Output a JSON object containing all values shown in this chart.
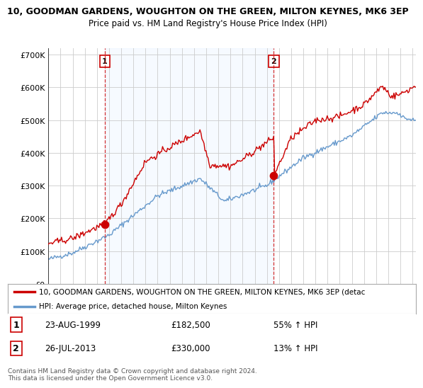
{
  "title": "10, GOODMAN GARDENS, WOUGHTON ON THE GREEN, MILTON KEYNES, MK6 3EP",
  "subtitle": "Price paid vs. HM Land Registry's House Price Index (HPI)",
  "xlim_start": 1995.0,
  "xlim_end": 2025.3,
  "ylim": [
    0,
    720000
  ],
  "yticks": [
    0,
    100000,
    200000,
    300000,
    400000,
    500000,
    600000,
    700000
  ],
  "ytick_labels": [
    "£0",
    "£100K",
    "£200K",
    "£300K",
    "£400K",
    "£500K",
    "£600K",
    "£700K"
  ],
  "transaction1_date": 1999.64,
  "transaction1_price": 182500,
  "transaction2_date": 2013.57,
  "transaction2_price": 330000,
  "red_line_color": "#cc0000",
  "blue_line_color": "#6699cc",
  "shade_color": "#ddeeff",
  "background_color": "#ffffff",
  "grid_color": "#cccccc",
  "legend_label_red": "10, GOODMAN GARDENS, WOUGHTON ON THE GREEN, MILTON KEYNES, MK6 3EP (detac",
  "legend_label_blue": "HPI: Average price, detached house, Milton Keynes",
  "table_row1": [
    "1",
    "23-AUG-1999",
    "£182,500",
    "55% ↑ HPI"
  ],
  "table_row2": [
    "2",
    "26-JUL-2013",
    "£330,000",
    "13% ↑ HPI"
  ],
  "footnote": "Contains HM Land Registry data © Crown copyright and database right 2024.\nThis data is licensed under the Open Government Licence v3.0."
}
